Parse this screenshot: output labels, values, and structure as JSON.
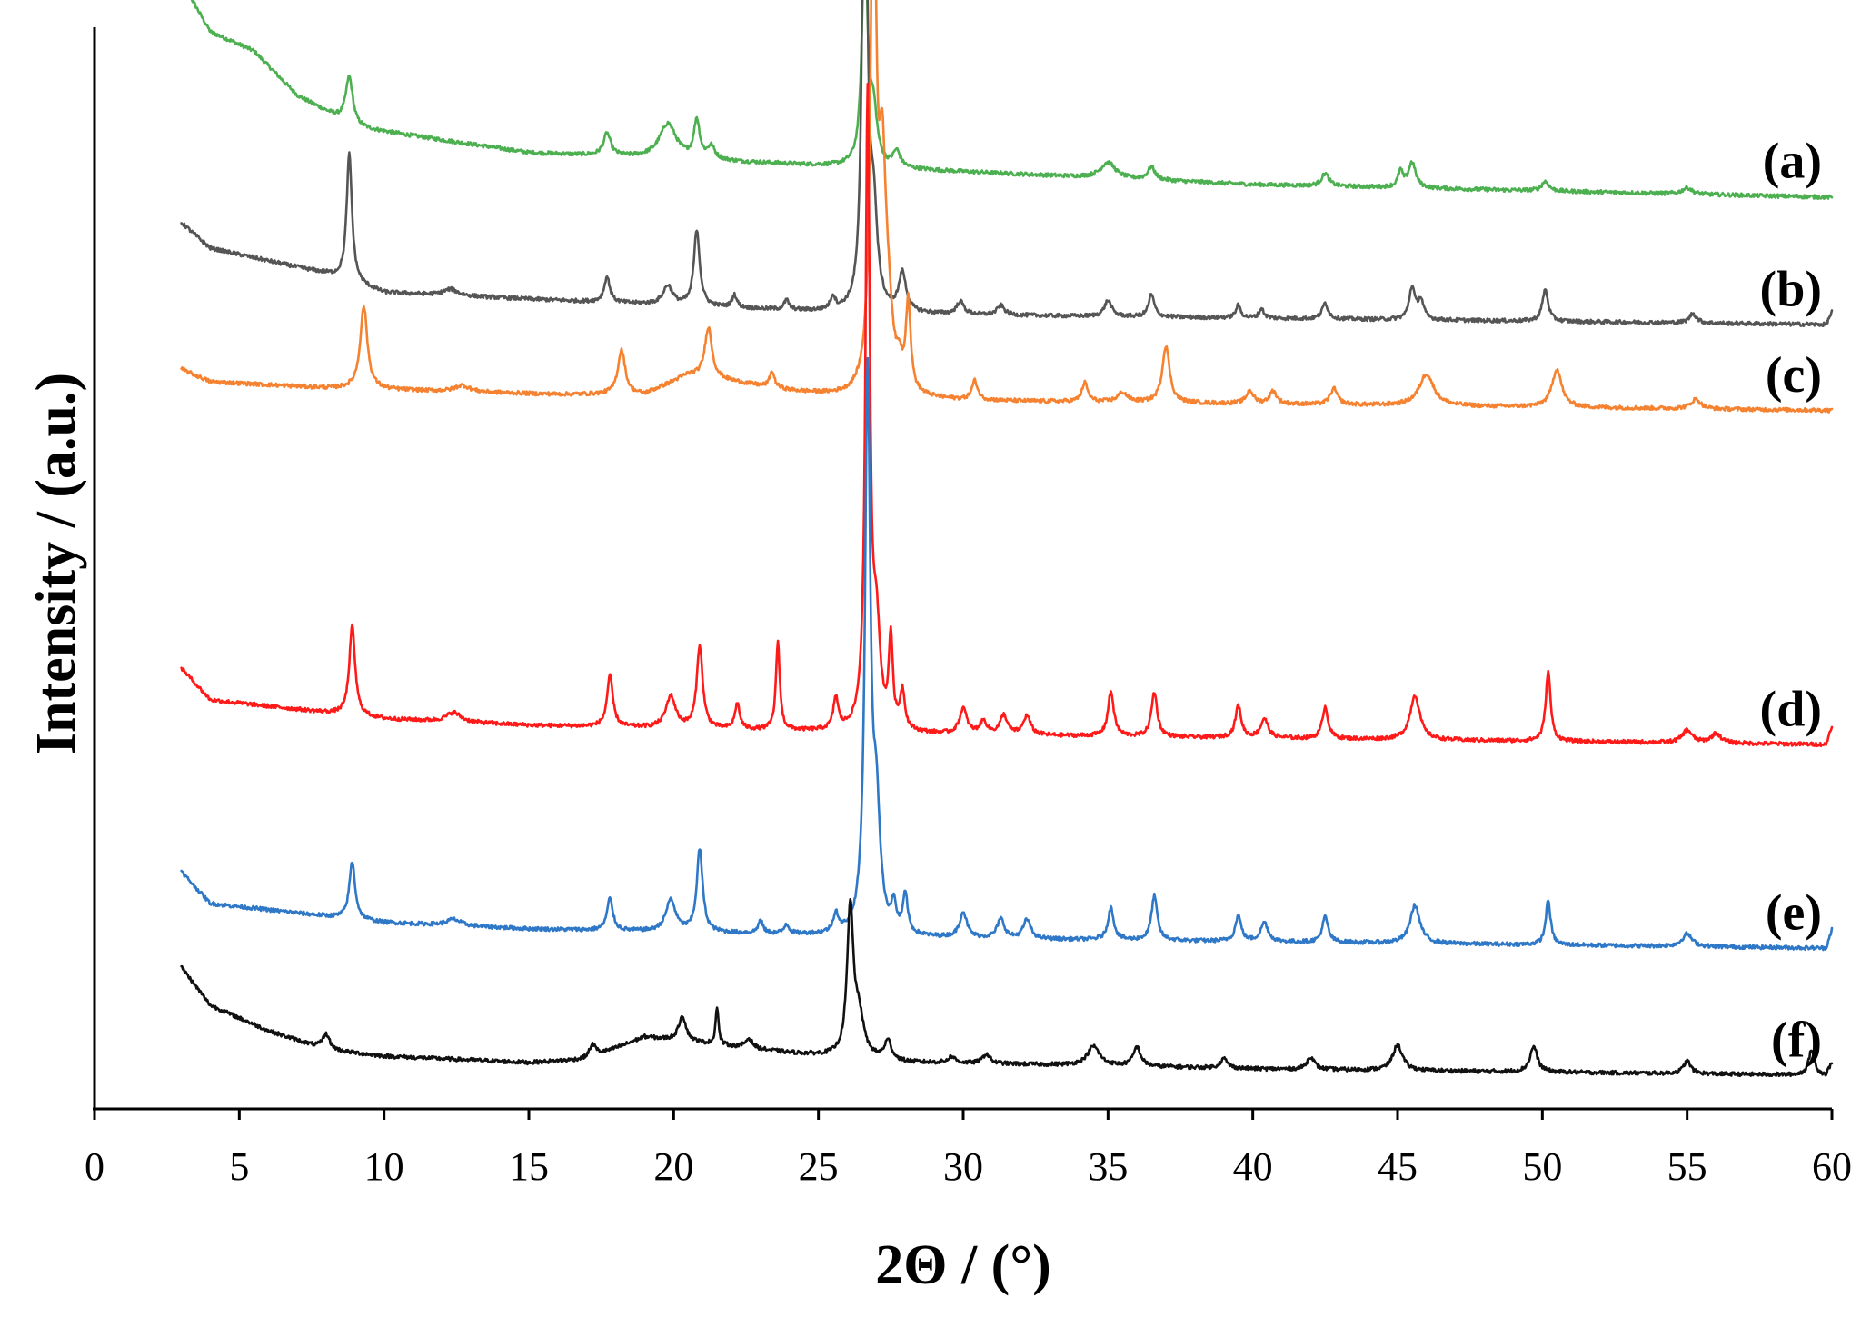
{
  "chart_data": {
    "type": "line",
    "xlabel": "2Θ / (°)",
    "ylabel": "Intensity / (a.u.)",
    "xlim": [
      0,
      60
    ],
    "x_ticks": [
      "0",
      "5",
      "10",
      "15",
      "20",
      "25",
      "30",
      "35",
      "40",
      "45",
      "50",
      "55",
      "60"
    ],
    "grid": false,
    "legend": "none",
    "series": [
      {
        "name": "(a)",
        "color": "#4caf50",
        "baseline": [
          [
            3,
            0.93
          ],
          [
            4,
            0.85
          ],
          [
            5.5,
            0.82
          ],
          [
            7,
            0.75
          ],
          [
            9,
            0.7
          ],
          [
            12,
            0.68
          ],
          [
            15,
            0.66
          ],
          [
            20,
            0.65
          ],
          [
            25,
            0.64
          ],
          [
            30,
            0.63
          ],
          [
            40,
            0.61
          ],
          [
            50,
            0.6
          ],
          [
            60,
            0.59
          ]
        ],
        "peaks": [
          [
            8.8,
            0.075,
            0.15
          ],
          [
            17.7,
            0.035,
            0.15
          ],
          [
            19.8,
            0.055,
            0.35
          ],
          [
            20.8,
            0.06,
            0.12
          ],
          [
            21.3,
            0.02,
            0.15
          ],
          [
            26.6,
            0.37,
            0.11
          ],
          [
            26.9,
            0.08,
            0.15
          ],
          [
            27.7,
            0.025,
            0.15
          ],
          [
            35.0,
            0.025,
            0.3
          ],
          [
            36.5,
            0.02,
            0.15
          ],
          [
            42.5,
            0.02,
            0.15
          ],
          [
            45.1,
            0.025,
            0.1
          ],
          [
            45.5,
            0.04,
            0.15
          ],
          [
            50.1,
            0.015,
            0.15
          ],
          [
            55.0,
            0.01,
            0.2
          ]
        ]
      },
      {
        "name": "(b)",
        "color": "#555555",
        "baseline": [
          [
            3,
            0.55
          ],
          [
            4,
            0.51
          ],
          [
            6,
            0.49
          ],
          [
            8,
            0.47
          ],
          [
            10,
            0.44
          ],
          [
            15,
            0.43
          ],
          [
            20,
            0.42
          ],
          [
            25,
            0.41
          ],
          [
            30,
            0.405
          ],
          [
            40,
            0.4
          ],
          [
            50,
            0.395
          ],
          [
            59.8,
            0.39
          ],
          [
            60,
            0.41
          ]
        ],
        "peaks": [
          [
            8.8,
            0.2,
            0.11
          ],
          [
            12.3,
            0.01,
            0.3
          ],
          [
            17.7,
            0.04,
            0.12
          ],
          [
            19.8,
            0.03,
            0.2
          ],
          [
            20.8,
            0.12,
            0.12
          ],
          [
            22.1,
            0.02,
            0.1
          ],
          [
            23.9,
            0.015,
            0.1
          ],
          [
            25.5,
            0.02,
            0.1
          ],
          [
            26.6,
            0.98,
            0.09
          ],
          [
            26.9,
            0.15,
            0.15
          ],
          [
            27.9,
            0.06,
            0.15
          ],
          [
            29.9,
            0.02,
            0.15
          ],
          [
            31.3,
            0.015,
            0.15
          ],
          [
            35.0,
            0.025,
            0.15
          ],
          [
            36.5,
            0.035,
            0.12
          ],
          [
            39.5,
            0.02,
            0.1
          ],
          [
            40.3,
            0.015,
            0.1
          ],
          [
            42.5,
            0.025,
            0.12
          ],
          [
            45.5,
            0.05,
            0.12
          ],
          [
            45.8,
            0.03,
            0.12
          ],
          [
            50.1,
            0.05,
            0.12
          ],
          [
            55.2,
            0.015,
            0.15
          ]
        ]
      },
      {
        "name": "(c)",
        "color": "#f58231",
        "baseline": [
          [
            3,
            0.32
          ],
          [
            4,
            0.3
          ],
          [
            8,
            0.29
          ],
          [
            12,
            0.285
          ],
          [
            16,
            0.28
          ],
          [
            19,
            0.28
          ],
          [
            20.5,
            0.31
          ],
          [
            22,
            0.3
          ],
          [
            24,
            0.285
          ],
          [
            26,
            0.275
          ],
          [
            30,
            0.27
          ],
          [
            40,
            0.265
          ],
          [
            50,
            0.26
          ],
          [
            60,
            0.255
          ]
        ],
        "peaks": [
          [
            9.3,
            0.13,
            0.15
          ],
          [
            12.7,
            0.01,
            0.3
          ],
          [
            18.2,
            0.07,
            0.15
          ],
          [
            21.2,
            0.08,
            0.15
          ],
          [
            23.4,
            0.025,
            0.1
          ],
          [
            26.9,
            0.86,
            0.11
          ],
          [
            27.2,
            0.3,
            0.15
          ],
          [
            27.4,
            0.1,
            0.2
          ],
          [
            27.8,
            0.03,
            0.1
          ],
          [
            28.1,
            0.14,
            0.1
          ],
          [
            30.4,
            0.03,
            0.12
          ],
          [
            34.2,
            0.03,
            0.12
          ],
          [
            35.5,
            0.015,
            0.2
          ],
          [
            37.0,
            0.09,
            0.15
          ],
          [
            39.9,
            0.02,
            0.15
          ],
          [
            40.7,
            0.02,
            0.15
          ],
          [
            42.8,
            0.025,
            0.15
          ],
          [
            46.0,
            0.05,
            0.3
          ],
          [
            50.5,
            0.06,
            0.2
          ],
          [
            55.3,
            0.015,
            0.2
          ]
        ]
      },
      {
        "name": "(d)",
        "color": "#ff1a1a",
        "baseline": [
          [
            3,
            -0.15
          ],
          [
            4,
            -0.2
          ],
          [
            6,
            -0.21
          ],
          [
            8,
            -0.22
          ],
          [
            10,
            -0.23
          ],
          [
            15,
            -0.24
          ],
          [
            20,
            -0.245
          ],
          [
            25,
            -0.25
          ],
          [
            30,
            -0.255
          ],
          [
            40,
            -0.26
          ],
          [
            50,
            -0.265
          ],
          [
            59.8,
            -0.27
          ],
          [
            60,
            -0.24
          ]
        ],
        "peaks": [
          [
            8.9,
            0.14,
            0.12
          ],
          [
            12.4,
            0.015,
            0.3
          ],
          [
            17.8,
            0.08,
            0.12
          ],
          [
            19.9,
            0.05,
            0.2
          ],
          [
            20.9,
            0.13,
            0.12
          ],
          [
            22.2,
            0.04,
            0.1
          ],
          [
            23.6,
            0.14,
            0.08
          ],
          [
            25.6,
            0.05,
            0.1
          ],
          [
            26.7,
            0.99,
            0.09
          ],
          [
            27.0,
            0.15,
            0.15
          ],
          [
            27.5,
            0.14,
            0.08
          ],
          [
            27.9,
            0.06,
            0.1
          ],
          [
            30.0,
            0.04,
            0.15
          ],
          [
            30.7,
            0.02,
            0.15
          ],
          [
            31.4,
            0.03,
            0.15
          ],
          [
            32.2,
            0.03,
            0.15
          ],
          [
            35.1,
            0.07,
            0.12
          ],
          [
            36.6,
            0.07,
            0.12
          ],
          [
            39.5,
            0.05,
            0.12
          ],
          [
            40.4,
            0.03,
            0.15
          ],
          [
            42.5,
            0.05,
            0.12
          ],
          [
            45.6,
            0.07,
            0.2
          ],
          [
            50.2,
            0.11,
            0.1
          ],
          [
            55.0,
            0.02,
            0.2
          ],
          [
            56.0,
            0.015,
            0.2
          ]
        ]
      },
      {
        "name": "(e)",
        "color": "#2f78c7",
        "baseline": [
          [
            3,
            -0.47
          ],
          [
            4,
            -0.52
          ],
          [
            6,
            -0.53
          ],
          [
            8,
            -0.54
          ],
          [
            10,
            -0.55
          ],
          [
            15,
            -0.56
          ],
          [
            20,
            -0.565
          ],
          [
            25,
            -0.57
          ],
          [
            30,
            -0.575
          ],
          [
            40,
            -0.58
          ],
          [
            50,
            -0.585
          ],
          [
            59.8,
            -0.59
          ],
          [
            60,
            -0.56
          ]
        ],
        "peaks": [
          [
            8.9,
            0.09,
            0.12
          ],
          [
            12.4,
            0.01,
            0.3
          ],
          [
            17.8,
            0.05,
            0.12
          ],
          [
            19.9,
            0.05,
            0.2
          ],
          [
            20.9,
            0.13,
            0.12
          ],
          [
            23.0,
            0.02,
            0.1
          ],
          [
            23.9,
            0.015,
            0.1
          ],
          [
            25.6,
            0.03,
            0.1
          ],
          [
            26.7,
            0.87,
            0.11
          ],
          [
            27.0,
            0.18,
            0.15
          ],
          [
            27.6,
            0.04,
            0.1
          ],
          [
            28.0,
            0.06,
            0.1
          ],
          [
            30.0,
            0.04,
            0.15
          ],
          [
            31.3,
            0.03,
            0.15
          ],
          [
            32.2,
            0.03,
            0.15
          ],
          [
            35.1,
            0.05,
            0.12
          ],
          [
            36.6,
            0.07,
            0.12
          ],
          [
            39.5,
            0.04,
            0.12
          ],
          [
            40.4,
            0.03,
            0.15
          ],
          [
            42.5,
            0.04,
            0.12
          ],
          [
            45.6,
            0.06,
            0.2
          ],
          [
            50.2,
            0.07,
            0.1
          ],
          [
            55.0,
            0.02,
            0.2
          ]
        ]
      },
      {
        "name": "(f)",
        "color": "#111111",
        "baseline": [
          [
            3,
            -0.62
          ],
          [
            4,
            -0.68
          ],
          [
            6,
            -0.72
          ],
          [
            8,
            -0.75
          ],
          [
            10,
            -0.76
          ],
          [
            15,
            -0.77
          ],
          [
            17,
            -0.765
          ],
          [
            19,
            -0.73
          ],
          [
            21,
            -0.74
          ],
          [
            24,
            -0.755
          ],
          [
            28,
            -0.77
          ],
          [
            35,
            -0.775
          ],
          [
            40,
            -0.78
          ],
          [
            50,
            -0.785
          ],
          [
            59.8,
            -0.79
          ],
          [
            60,
            -0.77
          ]
        ],
        "peaks": [
          [
            8.0,
            0.025,
            0.15
          ],
          [
            17.2,
            0.02,
            0.15
          ],
          [
            20.3,
            0.04,
            0.15
          ],
          [
            21.5,
            0.06,
            0.06
          ],
          [
            22.6,
            0.015,
            0.15
          ],
          [
            26.1,
            0.23,
            0.13
          ],
          [
            26.4,
            0.06,
            0.2
          ],
          [
            27.4,
            0.03,
            0.15
          ],
          [
            29.6,
            0.01,
            0.15
          ],
          [
            30.8,
            0.015,
            0.15
          ],
          [
            34.5,
            0.03,
            0.25
          ],
          [
            36.0,
            0.03,
            0.15
          ],
          [
            39.0,
            0.015,
            0.15
          ],
          [
            42.0,
            0.02,
            0.15
          ],
          [
            45.0,
            0.04,
            0.2
          ],
          [
            49.7,
            0.04,
            0.15
          ],
          [
            55.0,
            0.02,
            0.15
          ],
          [
            59.3,
            0.04,
            0.12
          ]
        ]
      }
    ]
  }
}
